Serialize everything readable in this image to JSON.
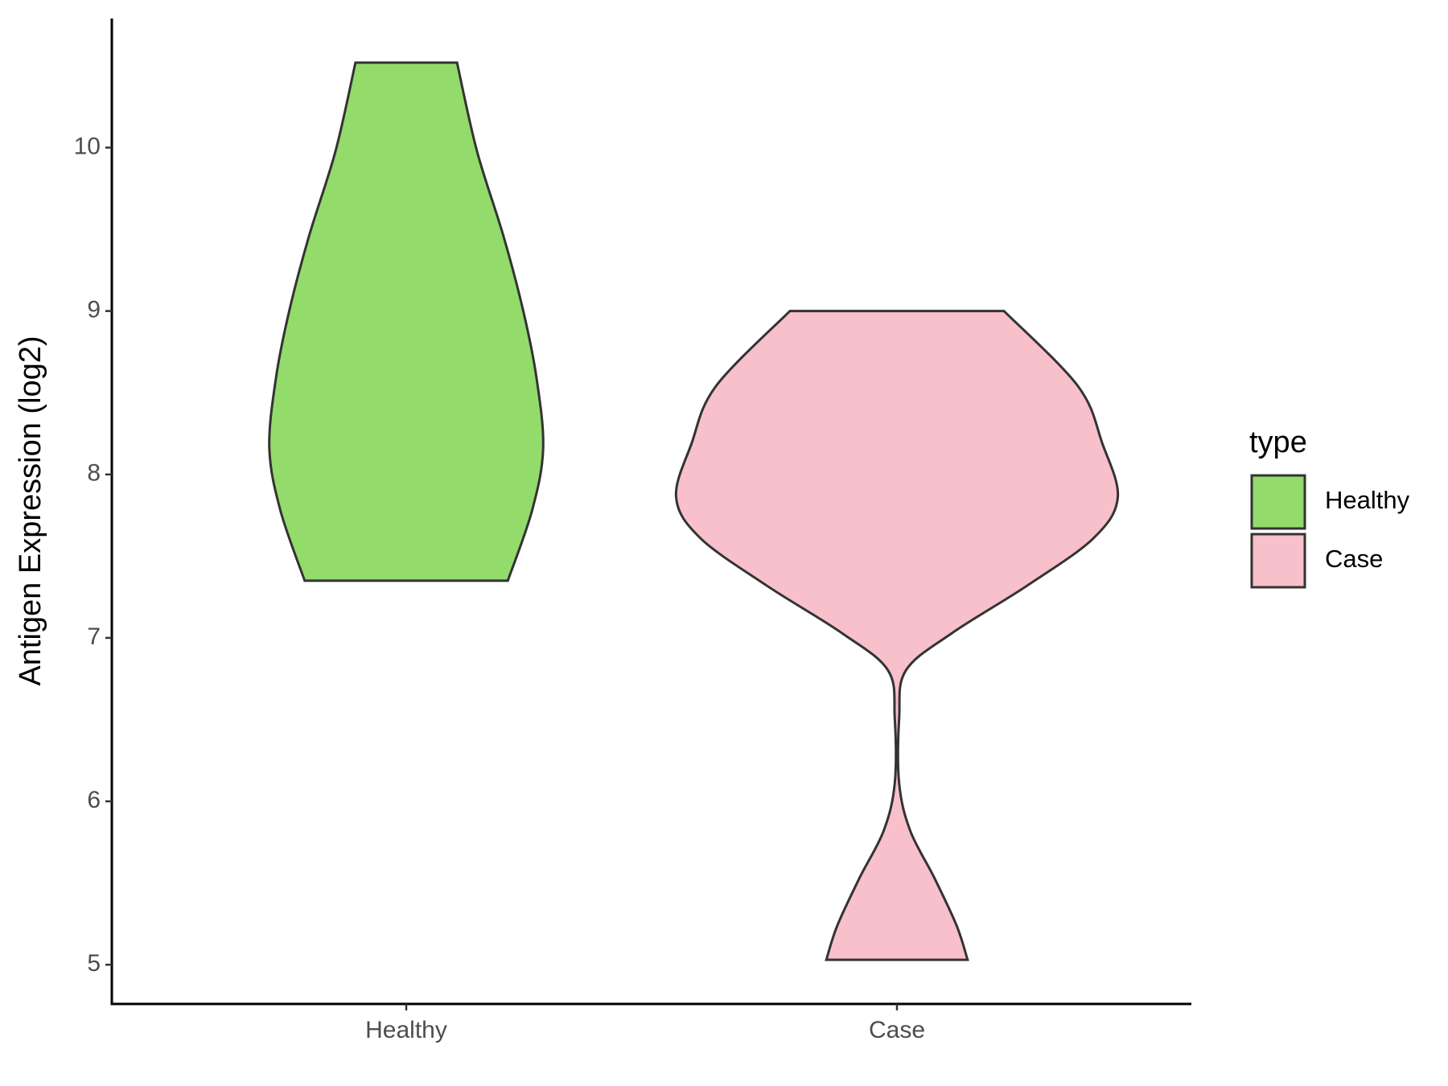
{
  "chart_data": {
    "type": "violin",
    "ylabel": "Antigen Expression (log2)",
    "legend_title": "type",
    "ylim": [
      4.76,
      10.79
    ],
    "yticks": [
      5,
      6,
      7,
      8,
      9,
      10
    ],
    "categories": [
      "Healthy",
      "Case"
    ],
    "series": [
      {
        "name": "Healthy",
        "color": "#93db6b",
        "y": [
          7.35,
          7.78,
          8.16,
          8.59,
          9.0,
          9.46,
          9.98,
          10.52
        ],
        "density": [
          0.46,
          0.57,
          0.62,
          0.59,
          0.53,
          0.44,
          0.32,
          0.23
        ]
      },
      {
        "name": "Case",
        "color": "#f7c0cb",
        "y": [
          5.03,
          5.24,
          5.53,
          5.82,
          6.11,
          6.51,
          6.8,
          7.03,
          7.32,
          7.61,
          7.86,
          8.19,
          8.54,
          9.0
        ],
        "density": [
          0.32,
          0.27,
          0.17,
          0.06,
          0.01,
          0.01,
          0.04,
          0.25,
          0.59,
          0.89,
          1.0,
          0.93,
          0.82,
          0.485
        ]
      }
    ]
  }
}
